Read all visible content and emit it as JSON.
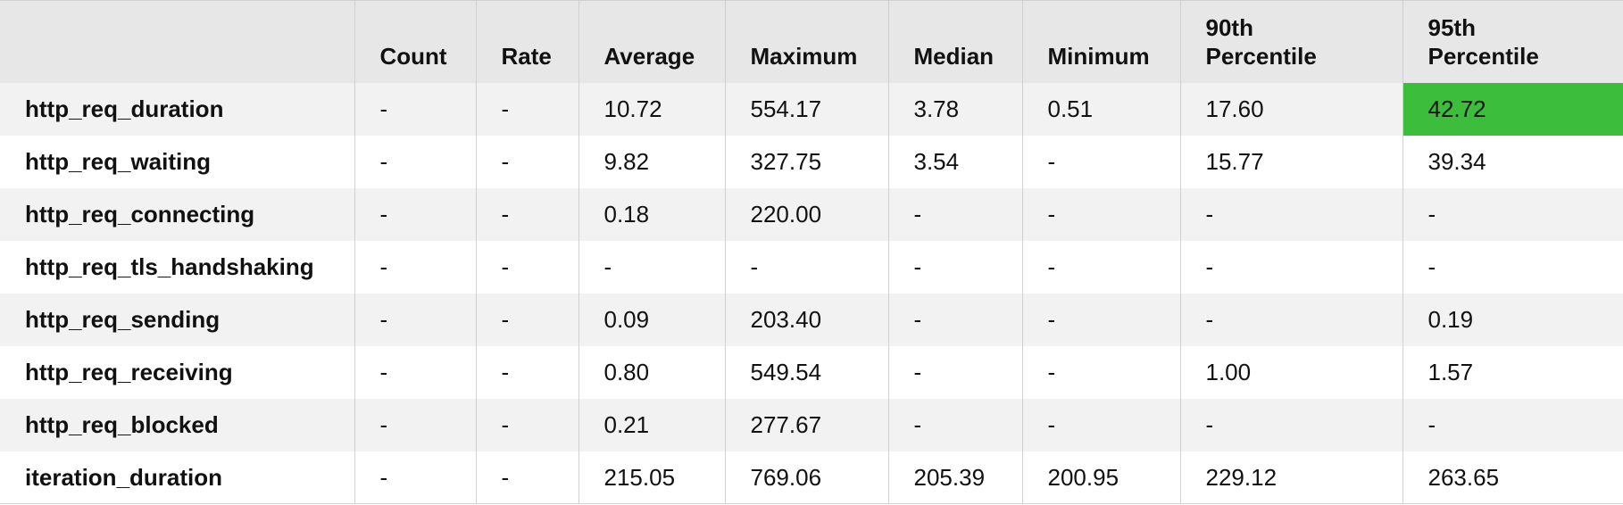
{
  "table": {
    "headers": [
      "",
      "Count",
      "Rate",
      "Average",
      "Maximum",
      "Median",
      "Minimum",
      "90th\nPercentile",
      "95th\nPercentile"
    ],
    "highlight_color": "#3cbe3c",
    "highlight_cell": {
      "row": 0,
      "col": 8
    },
    "rows": [
      [
        "http_req_duration",
        "-",
        "-",
        "10.72",
        "554.17",
        "3.78",
        "0.51",
        "17.60",
        "42.72"
      ],
      [
        "http_req_waiting",
        "-",
        "-",
        "9.82",
        "327.75",
        "3.54",
        "-",
        "15.77",
        "39.34"
      ],
      [
        "http_req_connecting",
        "-",
        "-",
        "0.18",
        "220.00",
        "-",
        "-",
        "-",
        "-"
      ],
      [
        "http_req_tls_handshaking",
        "-",
        "-",
        "-",
        "-",
        "-",
        "-",
        "-",
        "-"
      ],
      [
        "http_req_sending",
        "-",
        "-",
        "0.09",
        "203.40",
        "-",
        "-",
        "-",
        "0.19"
      ],
      [
        "http_req_receiving",
        "-",
        "-",
        "0.80",
        "549.54",
        "-",
        "-",
        "1.00",
        "1.57"
      ],
      [
        "http_req_blocked",
        "-",
        "-",
        "0.21",
        "277.67",
        "-",
        "-",
        "-",
        "-"
      ],
      [
        "iteration_duration",
        "-",
        "-",
        "215.05",
        "769.06",
        "205.39",
        "200.95",
        "229.12",
        "263.65"
      ]
    ]
  }
}
